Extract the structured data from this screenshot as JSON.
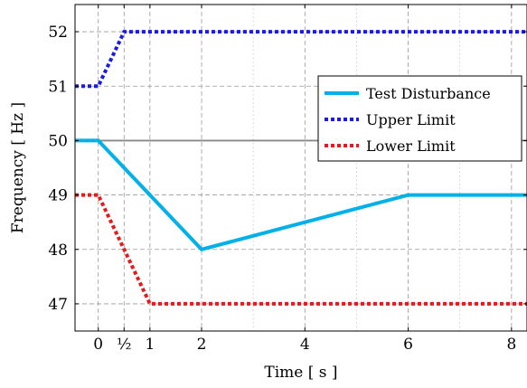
{
  "chart_data": {
    "type": "line",
    "xlabel": "Time [ s ]",
    "ylabel": "Frequency [ Hz ]",
    "xlim": [
      -0.45,
      8.3
    ],
    "ylim": [
      46.5,
      52.5
    ],
    "xticks": [
      0,
      0.5,
      1,
      2,
      4,
      6,
      8
    ],
    "xtick_labels": [
      "0",
      "½",
      "1",
      "2",
      "4",
      "6",
      "8"
    ],
    "yticks": [
      47,
      48,
      49,
      50,
      51,
      52
    ],
    "ytick_labels": [
      "47",
      "48",
      "49",
      "50",
      "51",
      "52"
    ],
    "grid": true,
    "legend_position": "right",
    "reference_line": {
      "y": 50,
      "color": "#888888"
    },
    "series": [
      {
        "name": "Test Disturbance",
        "color": "#00b0e8",
        "style": "solid",
        "x": [
          -0.45,
          0,
          2,
          6,
          8.3
        ],
        "y": [
          50,
          50,
          48,
          49,
          49
        ]
      },
      {
        "name": "Upper Limit",
        "color": "#1a1ae6",
        "style": "dotted",
        "x": [
          -0.45,
          0,
          0.5,
          8.3
        ],
        "y": [
          51,
          51,
          52,
          52
        ]
      },
      {
        "name": "Lower Limit",
        "color": "#e61a1a",
        "style": "dotted",
        "x": [
          -0.45,
          0,
          1,
          8.3
        ],
        "y": [
          49,
          49,
          47,
          47
        ]
      }
    ]
  }
}
